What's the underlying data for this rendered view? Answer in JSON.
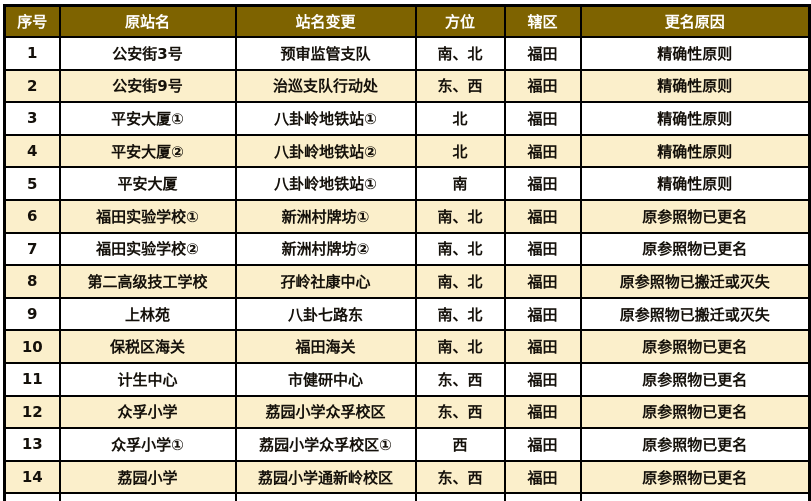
{
  "table": {
    "columns": [
      {
        "key": "seq",
        "label": "序号"
      },
      {
        "key": "orig",
        "label": "原站名"
      },
      {
        "key": "changed",
        "label": "站名变更"
      },
      {
        "key": "dir",
        "label": "方位"
      },
      {
        "key": "district",
        "label": "辖区"
      },
      {
        "key": "reason",
        "label": "更名原因"
      }
    ],
    "rows": [
      [
        "1",
        "公安街3号",
        "预审监管支队",
        "南、北",
        "福田",
        "精确性原则"
      ],
      [
        "2",
        "公安街9号",
        "治巡支队行动处",
        "东、西",
        "福田",
        "精确性原则"
      ],
      [
        "3",
        "平安大厦①",
        "八卦岭地铁站①",
        "北",
        "福田",
        "精确性原则"
      ],
      [
        "4",
        "平安大厦②",
        "八卦岭地铁站②",
        "北",
        "福田",
        "精确性原则"
      ],
      [
        "5",
        "平安大厦",
        "八卦岭地铁站①",
        "南",
        "福田",
        "精确性原则"
      ],
      [
        "6",
        "福田实验学校①",
        "新洲村牌坊①",
        "南、北",
        "福田",
        "原参照物已更名"
      ],
      [
        "7",
        "福田实验学校②",
        "新洲村牌坊②",
        "南、北",
        "福田",
        "原参照物已更名"
      ],
      [
        "8",
        "第二高级技工学校",
        "孖岭社康中心",
        "南、北",
        "福田",
        "原参照物已搬迁或灭失"
      ],
      [
        "9",
        "上林苑",
        "八卦七路东",
        "南、北",
        "福田",
        "原参照物已搬迁或灭失"
      ],
      [
        "10",
        "保税区海关",
        "福田海关",
        "南、北",
        "福田",
        "原参照物已更名"
      ],
      [
        "11",
        "计生中心",
        "市健研中心",
        "东、西",
        "福田",
        "原参照物已更名"
      ],
      [
        "12",
        "众孚小学",
        "荔园小学众孚校区",
        "东、西",
        "福田",
        "原参照物已更名"
      ],
      [
        "13",
        "众孚小学①",
        "荔园小学众孚校区①",
        "西",
        "福田",
        "原参照物已更名"
      ],
      [
        "14",
        "荔园小学",
        "荔园小学通新岭校区",
        "东、西",
        "福田",
        "原参照物已更名"
      ]
    ],
    "colors": {
      "header_bg": "#7E6300",
      "header_text": "#FFFFFF",
      "row_bg": "#FFFFFF",
      "row_alt_bg": "#FBEFCB",
      "border": "#000000",
      "text": "#14100A"
    }
  }
}
